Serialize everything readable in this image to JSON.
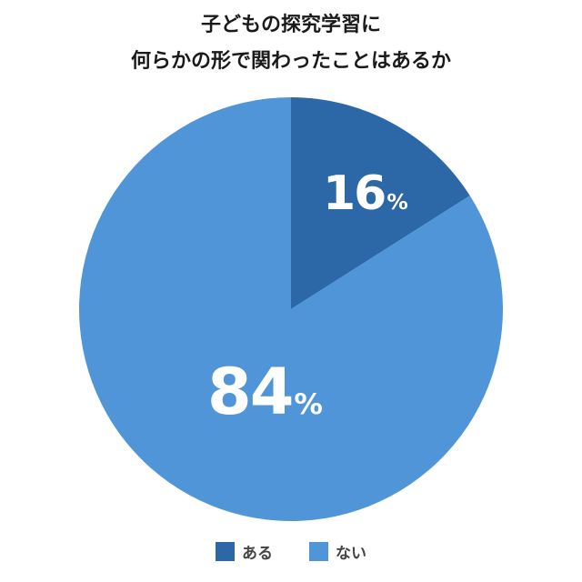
{
  "chart_data": {
    "type": "pie",
    "title": "子どもの探究学習に何らかの形で関わったことはあるか",
    "title_lines": [
      "子どもの探究学習に",
      "何らかの形で関わったことはあるか"
    ],
    "categories": [
      "ある",
      "ない"
    ],
    "values": [
      16,
      84
    ],
    "labels": [
      "16",
      "84"
    ],
    "unit": "%",
    "colors": [
      "#2c67a8",
      "#5095d7"
    ],
    "start_angle": "12 o'clock, clockwise",
    "legend_position": "bottom"
  }
}
